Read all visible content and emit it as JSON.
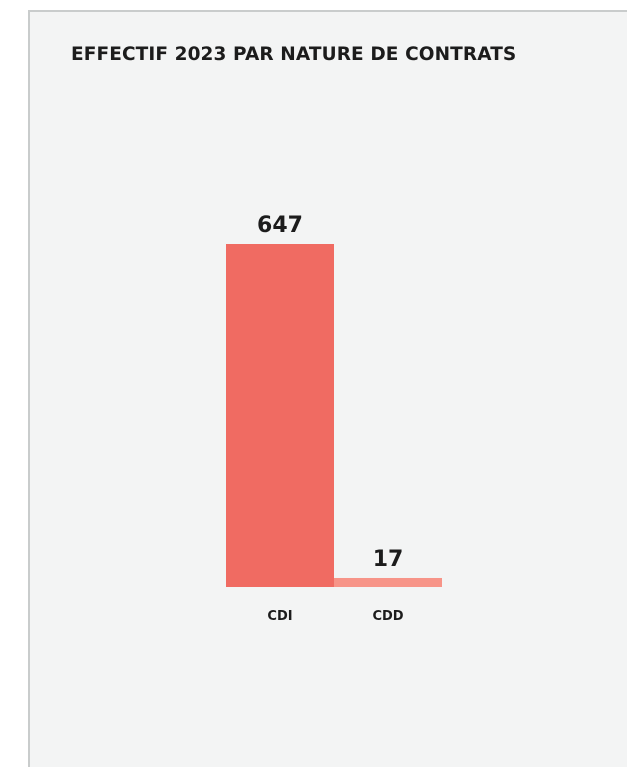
{
  "chart_data": {
    "type": "bar",
    "title": "EFFECTIF 2023 PAR NATURE DE CONTRATS",
    "categories": [
      "CDI",
      "CDD"
    ],
    "values": [
      647,
      17
    ],
    "data_labels": [
      "647",
      "17"
    ],
    "colors": [
      "#f06b62",
      "#f79488"
    ],
    "xlabel": "",
    "ylabel": "",
    "grid": false,
    "legend": "none"
  }
}
